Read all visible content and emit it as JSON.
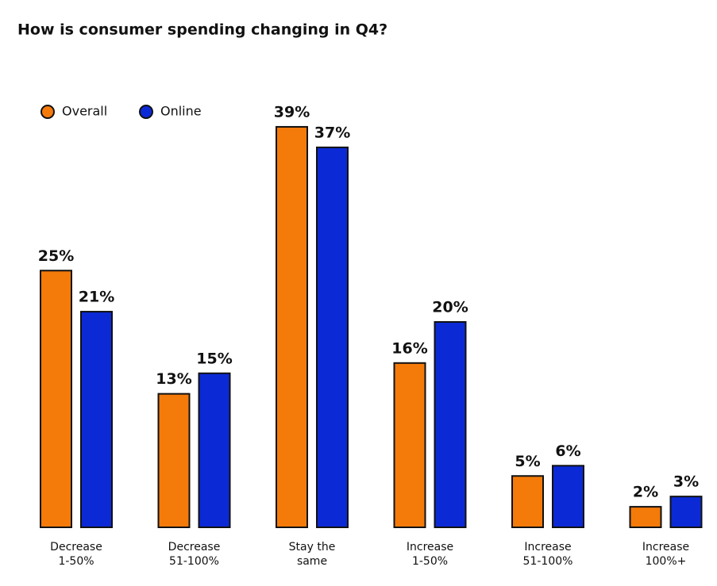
{
  "chart_data": {
    "type": "bar",
    "title": "How is consumer spending changing in Q4?",
    "categories": [
      [
        "Decrease",
        "1-50%"
      ],
      [
        "Decrease",
        "51-100%"
      ],
      [
        "Stay the",
        "same"
      ],
      [
        "Increase",
        "1-50%"
      ],
      [
        "Increase",
        "51-100%"
      ],
      [
        "Increase",
        "100%+"
      ]
    ],
    "series": [
      {
        "name": "Overall",
        "color": "#f47a0a",
        "values": [
          25,
          13,
          39,
          16,
          5,
          2
        ],
        "value_labels": [
          "25%",
          "13%",
          "39%",
          "16%",
          "5%",
          "2%"
        ]
      },
      {
        "name": "Online",
        "color": "#0b2ad6",
        "values": [
          21,
          15,
          37,
          20,
          6,
          3
        ],
        "value_labels": [
          "21%",
          "15%",
          "37%",
          "20%",
          "6%",
          "3%"
        ]
      }
    ]
  }
}
